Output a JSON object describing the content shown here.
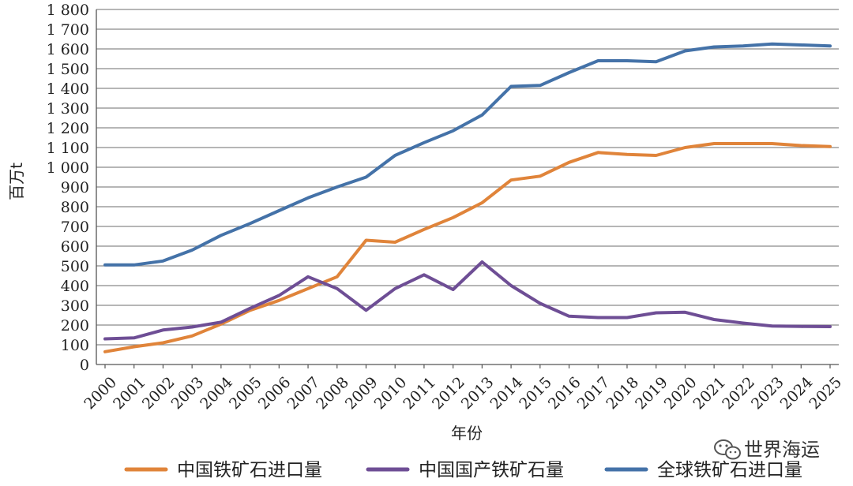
{
  "chart_data": {
    "type": "line",
    "title": "",
    "xlabel": "年份",
    "ylabel": "百万t",
    "ylim": [
      0,
      1800
    ],
    "yticks": [
      "0",
      "100",
      "200",
      "300",
      "400",
      "500",
      "600",
      "700",
      "800",
      "900",
      "1 000",
      "1 100",
      "1 200",
      "1 300",
      "1 400",
      "1 500",
      "1 600",
      "1 700",
      "1 800"
    ],
    "x": [
      "2000",
      "2001",
      "2002",
      "2003",
      "2004",
      "2005",
      "2006",
      "2007",
      "2008",
      "2009",
      "2010",
      "2011",
      "2012",
      "2013",
      "2014",
      "2015",
      "2016",
      "2017",
      "2018",
      "2019",
      "2020",
      "2021",
      "2022",
      "2023",
      "2024",
      "2025"
    ],
    "grid": "horizontal",
    "legend_position": "bottom",
    "series": [
      {
        "name": "中国铁矿石进口量",
        "color": "#E0843A",
        "values": [
          65,
          90,
          110,
          145,
          205,
          275,
          325,
          385,
          445,
          630,
          620,
          685,
          745,
          820,
          935,
          955,
          1025,
          1075,
          1065,
          1060,
          1100,
          1120,
          1120,
          1120,
          1110,
          1105
        ]
      },
      {
        "name": "中国国产铁矿石量",
        "color": "#6E4E95",
        "values": [
          130,
          135,
          175,
          190,
          215,
          285,
          350,
          445,
          385,
          275,
          385,
          455,
          380,
          520,
          400,
          310,
          245,
          238,
          238,
          262,
          265,
          228,
          210,
          195,
          193,
          192
        ]
      },
      {
        "name": "全球铁矿石进口量",
        "color": "#4472A8",
        "values": [
          505,
          505,
          525,
          580,
          655,
          715,
          780,
          845,
          900,
          950,
          1060,
          1125,
          1185,
          1265,
          1410,
          1415,
          1480,
          1540,
          1540,
          1535,
          1590,
          1610,
          1615,
          1625,
          1620,
          1615
        ]
      }
    ]
  },
  "watermark": {
    "text": "世界海运",
    "icon": "wechat-icon"
  }
}
